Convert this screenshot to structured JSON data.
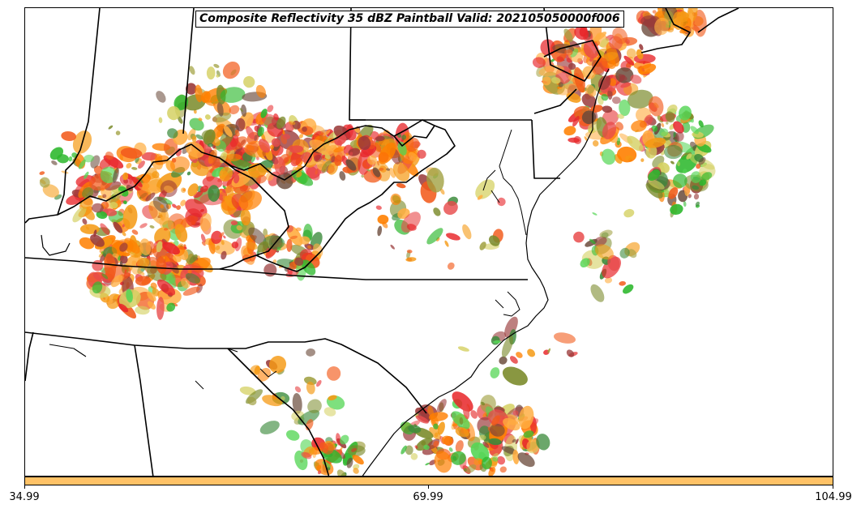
{
  "title": "Composite Reflectivity 35 dBZ Paintball Valid: 202105050000f006",
  "colorbar": {
    "color": "#ffc266",
    "ticks": [
      "34.99",
      "69.99",
      "104.99"
    ]
  },
  "palette": [
    "#e8262a",
    "#f25a1a",
    "#ff7f00",
    "#f59a14",
    "#ffad40",
    "#e84a4a",
    "#9a3a3a",
    "#7a8a2a",
    "#a0a040",
    "#3a8a3a",
    "#2db82d",
    "#55d655",
    "#6a4a3a",
    "#d4d060"
  ]
}
